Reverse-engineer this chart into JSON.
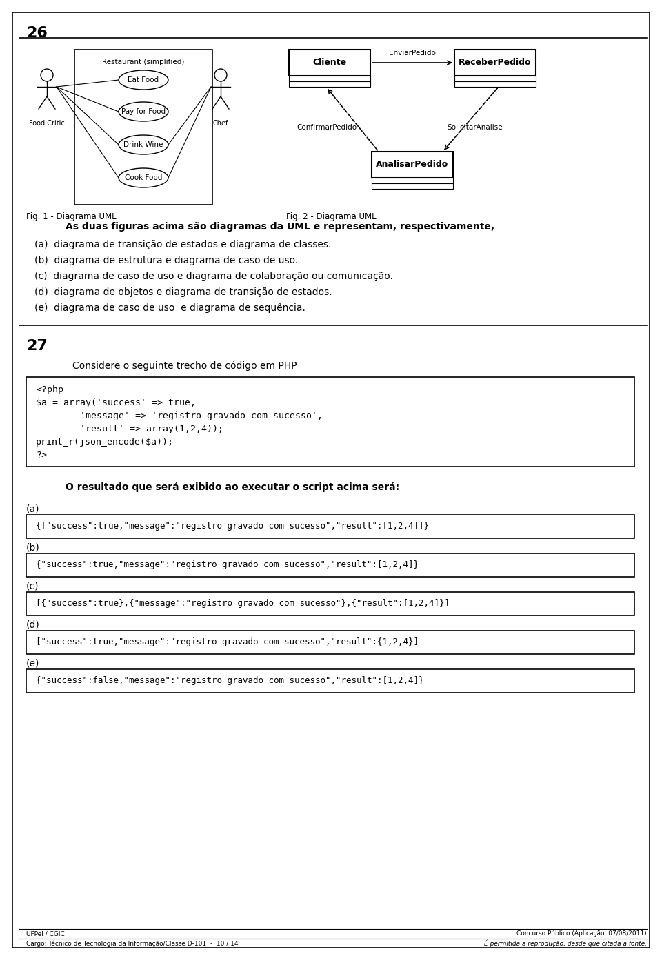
{
  "page_num": "26",
  "question_num": "27",
  "bg_color": "#ffffff",
  "fig1_caption": "Fig. 1 - Diagrama UML",
  "fig2_caption": "Fig. 2 - Diagrama UML",
  "question26_header": "As duas figuras acima são diagramas da UML e representam, respectivamente,",
  "q26_options": [
    "(a)  diagrama de transição de estados e diagrama de classes.",
    "(b)  diagrama de estrutura e diagrama de caso de uso.",
    "(c)  diagrama de caso de uso e diagrama de colaboração ou comunicação.",
    "(d)  diagrama de objetos e diagrama de transição de estados.",
    "(e)  diagrama de caso de uso  e diagrama de sequência."
  ],
  "q27_intro": "Considere o seguinte trecho de código em PHP",
  "code_lines": [
    "<?php",
    "$a = array('success' => true,",
    "        'message' => 'registro gravado com sucesso',",
    "        'result' => array(1,2,4));",
    "print_r(json_encode($a));",
    "?>"
  ],
  "q27_question": "O resultado que será exibido ao executar o script acima será:",
  "q27_options_labels": [
    "(a)",
    "(b)",
    "(c)",
    "(d)",
    "(e)"
  ],
  "q27_options_values": [
    "{[\"success\":true,\"message\":\"registro gravado com sucesso\",\"result\":[1,2,4]]}",
    "{\"success\":true,\"message\":\"registro gravado com sucesso\",\"result\":[1,2,4]}",
    "[{\"success\":true},{\"message\":\"registro gravado com sucesso\"},{\"result\":[1,2,4]}]",
    "[\"success\":true,\"message\":\"registro gravado com sucesso\",\"result\":{1,2,4}]",
    "{\"success\":false,\"message\":\"registro gravado com sucesso\",\"result\":[1,2,4]}"
  ],
  "footer_left1": "UFPel / CGIC",
  "footer_left2": "Cargo: Técnico de Tecnologia da Informação/Classe D-101  -  10 / 14",
  "footer_right1": "Concurso Público (Aplicação: 07/08/2011)",
  "footer_right2": "É permitida a reprodução, desde que citada a fonte.",
  "use_case_title": "Restaurant (simplified)",
  "use_case_items": [
    "Eat Food",
    "Pay for Food",
    "Drink Wine",
    "Cook Food"
  ],
  "actor_left": "Food Critic",
  "actor_right": "Chef"
}
